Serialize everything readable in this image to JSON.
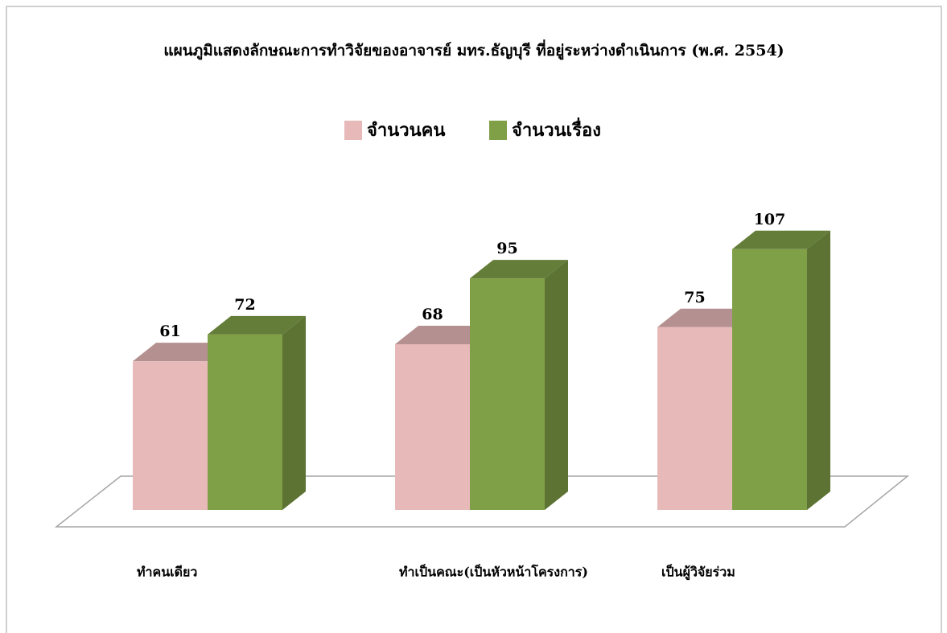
{
  "chart_data": {
    "type": "bar3d",
    "title": "แผนภูมิแสดงลักษณะการทำวิจัยของอาจารย์ มทร.ธัญบุรี ที่อยู่ระหว่างดำเนินการ (พ.ศ. 2554)",
    "categories": [
      "ทำคนเดียว",
      "ทำเป็นคณะ(เป็นหัวหน้าโครงการ)",
      "เป็นผู้วิจัยร่วม"
    ],
    "series": [
      {
        "name": "จำนวนคน",
        "color": "#e8b9b9",
        "values": [
          61,
          68,
          75
        ]
      },
      {
        "name": "จำนวนเรื่อง",
        "color": "#80a048",
        "values": [
          72,
          95,
          107
        ]
      }
    ],
    "legend": "top"
  }
}
